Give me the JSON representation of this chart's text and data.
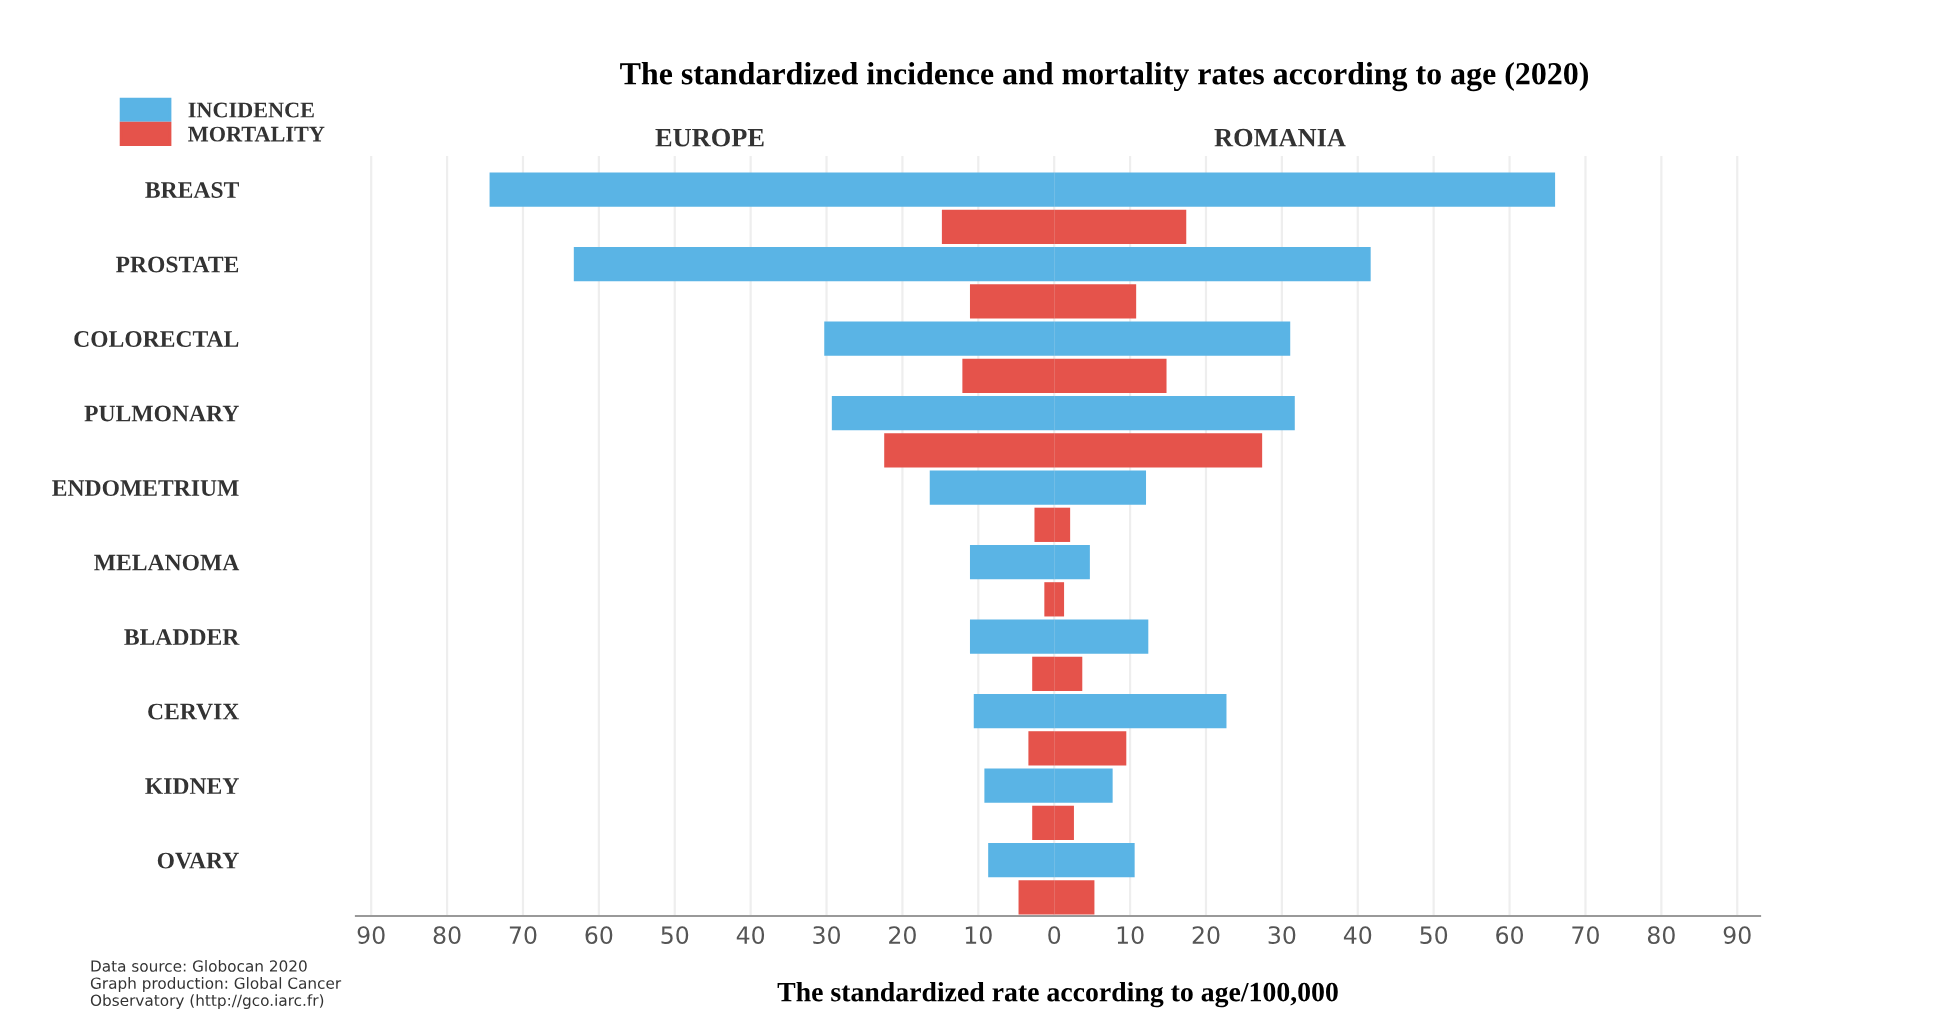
{
  "chart_data": {
    "type": "bar",
    "orientation": "horizontal",
    "stacked": true,
    "title": "The standardized incidence and mortality rates according to age (2020)",
    "xlabel": "The standardized rate according to age/100,000",
    "categories": [
      "BREAST",
      null,
      "PROSTATE",
      null,
      "COLORECTAL",
      null,
      "PULMONARY",
      null,
      "ENDOMETRIUM",
      null,
      "MELANOMA",
      null,
      "BLADDER",
      null,
      "CERVIX",
      null,
      "KIDNEY",
      null,
      "OVARY",
      null
    ],
    "series": [
      {
        "name": "INCIDENCE",
        "color": "#5ab4e5",
        "values": [
          -74.4,
          null,
          -63.3,
          null,
          -30.3,
          null,
          -29.3,
          null,
          -16.4,
          null,
          -11.1,
          null,
          -11.1,
          null,
          -10.6,
          null,
          -9.2,
          null,
          -8.7,
          null
        ]
      },
      {
        "color": "#5ab4e5",
        "values": [
          66,
          null,
          41.7,
          null,
          31.1,
          null,
          31.7,
          null,
          12.1,
          null,
          4.7,
          null,
          12.4,
          null,
          22.7,
          null,
          7.7,
          null,
          10.6,
          null
        ]
      },
      {
        "name": "MORTALITY",
        "color": "#e5534b",
        "values": [
          null,
          -14.8,
          null,
          -11.1,
          null,
          -12.1,
          null,
          -22.4,
          null,
          -2.6,
          null,
          -1.3,
          null,
          -2.9,
          null,
          -3.4,
          null,
          -2.9,
          null,
          -4.7
        ]
      },
      {
        "color": "#e5534b",
        "values": [
          null,
          17.4,
          null,
          10.8,
          null,
          14.8,
          null,
          27.4,
          null,
          2.1,
          null,
          1.3,
          null,
          3.7,
          null,
          9.5,
          null,
          2.6,
          null,
          5.3
        ]
      }
    ],
    "xlim": [
      -92,
      93
    ],
    "xticks": [
      {
        "value": -90,
        "label": "90"
      },
      {
        "value": -80,
        "label": "80"
      },
      {
        "value": -70,
        "label": "70"
      },
      {
        "value": -60,
        "label": "60"
      },
      {
        "value": -50,
        "label": "50"
      },
      {
        "value": -40,
        "label": "40"
      },
      {
        "value": -30,
        "label": "30"
      },
      {
        "value": -20,
        "label": "20"
      },
      {
        "value": -10,
        "label": "10"
      },
      0,
      10,
      20,
      30,
      40,
      50,
      60,
      70,
      80,
      90
    ],
    "grid": "x",
    "legend": "top left",
    "annotations": [
      "EUROPE",
      "ROMANIA",
      "Data source: Globocan 2020\nGraph production: Global Cancer\nObservatory (http://gco.iarc.fr)"
    ]
  }
}
